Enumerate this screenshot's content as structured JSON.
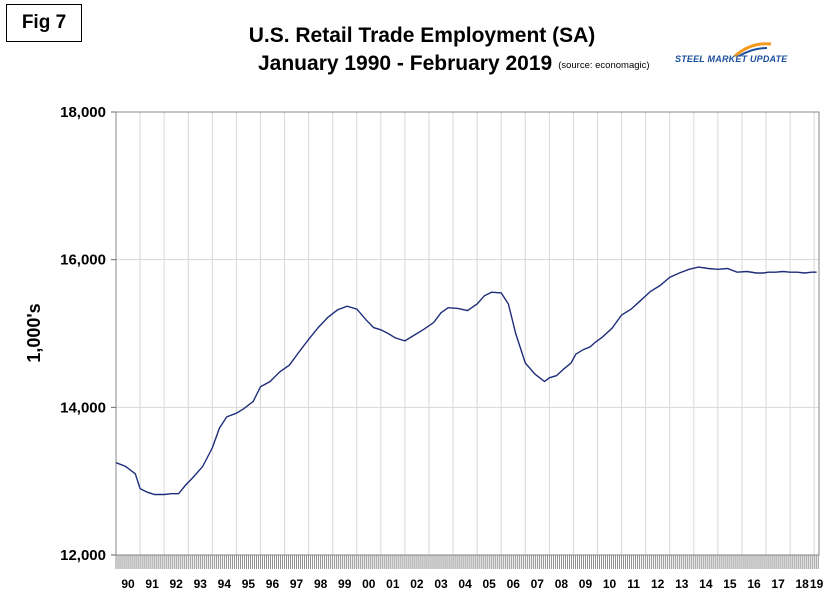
{
  "fig_label": "Fig 7",
  "title_line1": "U.S. Retail Trade Employment (SA)",
  "title_line2": "January 1990 - February 2019",
  "source_note": "(source: economagic)",
  "logo_text": "STEEL MARKET UPDATE",
  "colors": {
    "line": "#1f2d7a",
    "grid": "#d8d8d8",
    "logo_blue": "#1a4f9c",
    "logo_orange": "#f39a1e"
  },
  "chart_data": {
    "type": "line",
    "title": "U.S. Retail Trade Employment (SA) January 1990 - February 2019",
    "xlabel": "",
    "ylabel": "1,000's",
    "ylim": [
      12000,
      18000
    ],
    "yticks": [
      12000,
      14000,
      16000,
      18000
    ],
    "ytick_labels": [
      "12,000",
      "14,000",
      "16,000",
      "18,000"
    ],
    "xtick_labels": [
      "90",
      "91",
      "92",
      "93",
      "94",
      "95",
      "96",
      "97",
      "98",
      "99",
      "00",
      "01",
      "02",
      "03",
      "04",
      "05",
      "06",
      "07",
      "08",
      "09",
      "10",
      "11",
      "12",
      "13",
      "14",
      "15",
      "16",
      "17",
      "18",
      "19"
    ],
    "grid": "vertical",
    "x_start": 1990.0,
    "x_end": 2019.2,
    "series": [
      {
        "x": [
          1990.0,
          1990.4,
          1990.8,
          1991.0,
          1991.3,
          1991.6,
          1992.0,
          1992.3,
          1992.6,
          1992.9,
          1993.2,
          1993.6,
          1994.0,
          1994.3,
          1994.6,
          1995.0,
          1995.3,
          1995.7,
          1996.0,
          1996.4,
          1996.8,
          1997.2,
          1997.6,
          1998.0,
          1998.4,
          1998.8,
          1999.2,
          1999.6,
          2000.0,
          2000.4,
          2000.7,
          2001.0,
          2001.3,
          2001.6,
          2002.0,
          2002.4,
          2002.8,
          2003.2,
          2003.5,
          2003.8,
          2004.2,
          2004.6,
          2005.0,
          2005.3,
          2005.6,
          2006.0,
          2006.3,
          2006.6,
          2007.0,
          2007.4,
          2007.8,
          2008.0,
          2008.3,
          2008.6,
          2008.9,
          2009.1,
          2009.4,
          2009.7,
          2009.9,
          2010.2,
          2010.6,
          2011.0,
          2011.4,
          2011.8,
          2012.2,
          2012.6,
          2013.0,
          2013.4,
          2013.8,
          2014.2,
          2014.6,
          2015.0,
          2015.4,
          2015.8,
          2016.2,
          2016.6,
          2016.9,
          2017.1,
          2017.4,
          2017.7,
          2018.0,
          2018.3,
          2018.6,
          2018.9,
          2019.1
        ],
        "y": [
          13250,
          13200,
          13100,
          12900,
          12850,
          12820,
          12820,
          12830,
          12830,
          12950,
          13050,
          13200,
          13450,
          13720,
          13870,
          13920,
          13980,
          14080,
          14280,
          14350,
          14480,
          14570,
          14750,
          14920,
          15080,
          15220,
          15320,
          15370,
          15330,
          15180,
          15080,
          15050,
          15000,
          14940,
          14900,
          14980,
          15060,
          15150,
          15280,
          15350,
          15340,
          15310,
          15400,
          15510,
          15560,
          15550,
          15400,
          15000,
          14600,
          14450,
          14350,
          14400,
          14430,
          14520,
          14600,
          14720,
          14780,
          14820,
          14880,
          14950,
          15070,
          15250,
          15330,
          15450,
          15570,
          15650,
          15760,
          15820,
          15870,
          15900,
          15880,
          15870,
          15880,
          15830,
          15840,
          15820,
          15820,
          15830,
          15830,
          15840,
          15830,
          15830,
          15820,
          15830,
          15830
        ]
      }
    ]
  }
}
